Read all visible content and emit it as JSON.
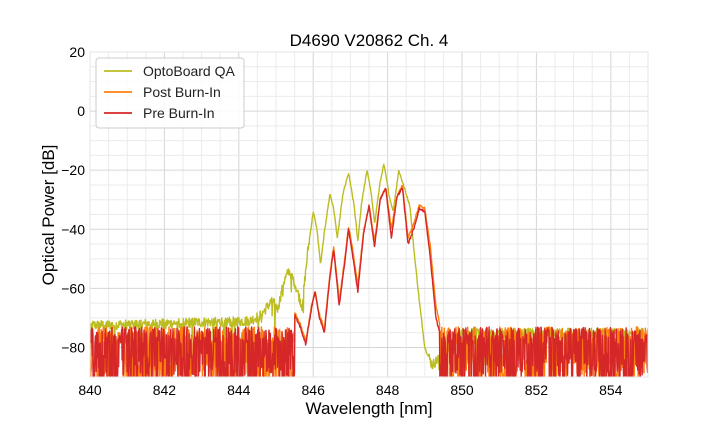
{
  "chart_data": {
    "type": "line",
    "title": "D4690 V20862 Ch. 4",
    "xlabel": "Wavelength [nm]",
    "ylabel": "Optical Power [dB]",
    "xlim": [
      840,
      855
    ],
    "ylim": [
      -90,
      20
    ],
    "xticks": [
      840,
      842,
      844,
      846,
      848,
      850,
      852,
      854
    ],
    "xtick_labels": [
      "840",
      "842",
      "844",
      "846",
      "848",
      "850",
      "852",
      "854"
    ],
    "yticks": [
      20,
      0,
      -20,
      -40,
      -60,
      -80
    ],
    "ytick_labels": [
      "20",
      "0",
      "−20",
      "−40",
      "−60",
      "−80"
    ],
    "grid": true,
    "legend_position": "top-left",
    "noise": {
      "qa_floor": -72.5,
      "burn_floor": -80,
      "qa_cutoff_lo": 845.9,
      "qa_cutoff_hi": 849.1,
      "burn_cutoff_lo": 845.5,
      "burn_cutoff_hi": 849.4
    },
    "series": [
      {
        "name": "OptoBoard QA",
        "color": "#bcbd22",
        "x": [
          840,
          844.3,
          844.6,
          844.9,
          845.05,
          845.2,
          845.35,
          845.5,
          845.7,
          845.85,
          846.0,
          846.1,
          846.2,
          846.3,
          846.45,
          846.55,
          846.65,
          846.8,
          846.95,
          847.1,
          847.2,
          847.3,
          847.45,
          847.55,
          847.65,
          847.8,
          847.9,
          848.05,
          848.15,
          848.3,
          848.45,
          848.6,
          848.7,
          848.85,
          849.0,
          849.2,
          849.5,
          850,
          855
        ],
        "y": [
          -72.5,
          -71,
          -69,
          -64,
          -67,
          -58,
          -54,
          -58,
          -66,
          -48,
          -34,
          -40,
          -52,
          -41,
          -28,
          -33,
          -43,
          -28,
          -21,
          -32,
          -44,
          -31,
          -20,
          -27,
          -38,
          -24,
          -18,
          -29,
          -34,
          -20,
          -26,
          -32,
          -46,
          -64,
          -80,
          -86,
          -82,
          -75,
          -75
        ]
      },
      {
        "name": "Post Burn-In",
        "color": "#ff7f0e",
        "x": [
          840,
          845.3,
          845.5,
          845.65,
          845.8,
          845.95,
          846.05,
          846.15,
          846.3,
          846.45,
          846.55,
          846.7,
          846.85,
          846.95,
          847.05,
          847.2,
          847.35,
          847.5,
          847.65,
          847.8,
          847.95,
          848.1,
          848.25,
          848.4,
          848.55,
          848.7,
          848.85,
          849.0,
          849.15,
          849.3,
          849.5,
          850,
          855
        ],
        "y": [
          -80,
          -72,
          -68,
          -72,
          -78,
          -66,
          -61,
          -68,
          -74,
          -55,
          -46,
          -64,
          -50,
          -39,
          -46,
          -59,
          -41,
          -32,
          -44,
          -30,
          -26,
          -40,
          -29,
          -25,
          -43,
          -38,
          -32,
          -33,
          -46,
          -66,
          -78,
          -78,
          -78
        ]
      },
      {
        "name": "Pre Burn-In",
        "color": "#d62728",
        "x": [
          840,
          845.3,
          845.5,
          845.65,
          845.8,
          845.95,
          846.05,
          846.15,
          846.3,
          846.45,
          846.55,
          846.7,
          846.85,
          846.95,
          847.05,
          847.2,
          847.35,
          847.5,
          847.65,
          847.8,
          847.95,
          848.1,
          848.25,
          848.4,
          848.55,
          848.7,
          848.85,
          849.0,
          849.15,
          849.3,
          849.5,
          850,
          855
        ],
        "y": [
          -80,
          -73,
          -69,
          -73,
          -79,
          -67,
          -61,
          -69,
          -75,
          -56,
          -47,
          -66,
          -51,
          -40,
          -48,
          -61,
          -42,
          -32,
          -46,
          -30,
          -26,
          -43,
          -29,
          -26,
          -45,
          -40,
          -33,
          -34,
          -50,
          -70,
          -80,
          -80,
          -80
        ]
      }
    ]
  }
}
